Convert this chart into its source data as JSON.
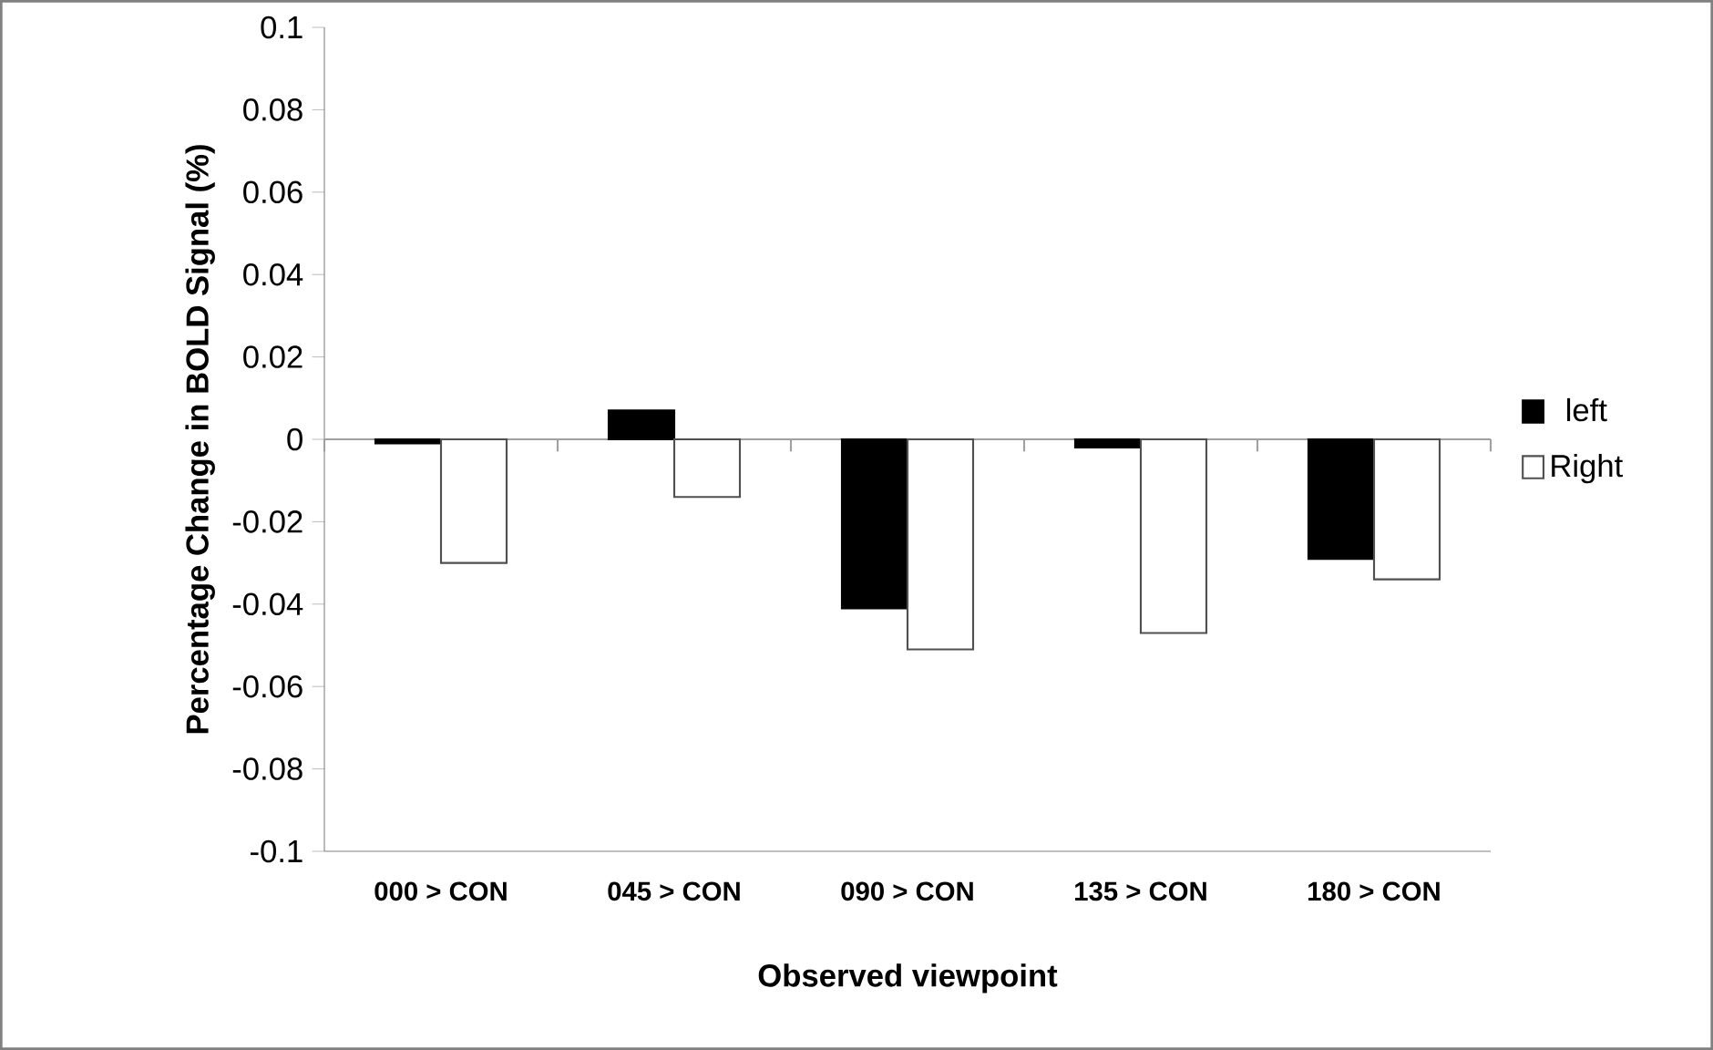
{
  "chart_data": {
    "type": "bar",
    "xlabel": "Observed viewpoint",
    "ylabel": "Percentage Change in BOLD Signal (%)",
    "categories": [
      "000 > CON",
      "045 > CON",
      "090 > CON",
      "135 > CON",
      "180 > CON"
    ],
    "series": [
      {
        "name": "left",
        "color": "#000000",
        "values": [
          -0.001,
          0.007,
          -0.041,
          -0.002,
          -0.029
        ]
      },
      {
        "name": "Right",
        "color": "#ffffff",
        "values": [
          -0.03,
          -0.014,
          -0.051,
          -0.047,
          -0.034
        ]
      }
    ],
    "ylim": [
      -0.1,
      0.1
    ],
    "yticks": [
      -0.1,
      -0.08,
      -0.06,
      -0.04,
      -0.02,
      0,
      0.02,
      0.04,
      0.06,
      0.08,
      0.1
    ],
    "ref_lines": [
      {
        "axis": "y",
        "value": 0,
        "color": "#a0a0a0"
      }
    ],
    "legend": "right",
    "grid": false
  }
}
